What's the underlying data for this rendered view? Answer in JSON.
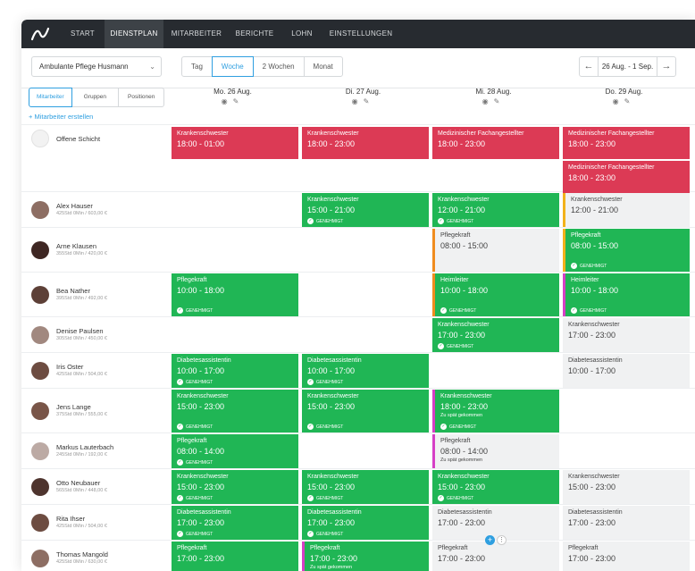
{
  "nav": {
    "items": [
      "START",
      "DIENSTPLAN",
      "MITARBEITER",
      "BERICHTE",
      "LOHN",
      "EINSTELLUNGEN"
    ],
    "active": "DIENSTPLAN"
  },
  "toolbar": {
    "location_select": "Ambulante Pflege Husmann",
    "view_options": [
      "Tag",
      "Woche",
      "2 Wochen",
      "Monat"
    ],
    "active_view": "Woche",
    "date_range": "26 Aug. - 1 Sep.",
    "prev_icon": "arrow-left-icon",
    "next_icon": "arrow-right-icon"
  },
  "sidebar": {
    "tabs": [
      "Mitarbeiter",
      "Gruppen",
      "Positionen"
    ],
    "active_tab": "Mitarbeiter",
    "add_staff": "+ Mitarbeiter erstellen"
  },
  "days": [
    {
      "label": "Mo. 26 Aug."
    },
    {
      "label": "Di. 27 Aug."
    },
    {
      "label": "Mi. 28 Aug."
    },
    {
      "label": "Do. 29 Aug."
    }
  ],
  "day_icons": [
    "eye-icon",
    "edit-icon"
  ],
  "status_label": "GENEHMIGT",
  "late_label": "Zu spät gekommen",
  "staff": [
    {
      "name": "Offene Schicht",
      "meta": ""
    },
    {
      "name": "Alex Hauser",
      "meta": "425Std 0Min / 603,00 €"
    },
    {
      "name": "Arne Klausen",
      "meta": "355Std 0Min / 420,00 €"
    },
    {
      "name": "Bea Nather",
      "meta": "395Std 0Min / 492,00 €"
    },
    {
      "name": "Denise Paulsen",
      "meta": "305Std 0Min / 450,00 €"
    },
    {
      "name": "Iris Oster",
      "meta": "425Std 0Min / 504,00 €"
    },
    {
      "name": "Jens Lange",
      "meta": "375Std 0Min / 555,00 €"
    },
    {
      "name": "Markus Lauterbach",
      "meta": "245Std 0Min / 192,00 €"
    },
    {
      "name": "Otto Neubauer",
      "meta": "565Std 0Min / 448,00 €"
    },
    {
      "name": "Rita Ihser",
      "meta": "425Std 0Min / 504,00 €"
    },
    {
      "name": "Thomas Mangold",
      "meta": "425Std 0Min / 630,00 €"
    }
  ],
  "shifts": [
    {
      "row": 0,
      "day": 0,
      "slot": 0,
      "role": "Krankenschwester",
      "time": "18:00 - 01:00",
      "color": "red"
    },
    {
      "row": 0,
      "day": 1,
      "slot": 0,
      "role": "Krankenschwester",
      "time": "18:00 - 23:00",
      "color": "red"
    },
    {
      "row": 0,
      "day": 2,
      "slot": 0,
      "role": "Medizinischer Fachangestellter",
      "time": "18:00 - 23:00",
      "color": "red"
    },
    {
      "row": 0,
      "day": 3,
      "slot": 0,
      "role": "Medizinischer Fachangestellter",
      "time": "18:00 - 23:00",
      "color": "red"
    },
    {
      "row": 0,
      "day": 3,
      "slot": 1,
      "role": "Medizinischer Fachangestellter",
      "time": "18:00 - 23:00",
      "color": "red"
    },
    {
      "row": 1,
      "day": 1,
      "slot": 0,
      "role": "Krankenschwester",
      "time": "15:00 - 21:00",
      "color": "green",
      "approved": true
    },
    {
      "row": 1,
      "day": 2,
      "slot": 0,
      "role": "Krankenschwester",
      "time": "12:00 - 21:00",
      "color": "green",
      "approved": true
    },
    {
      "row": 1,
      "day": 3,
      "slot": 0,
      "role": "Krankenschwester",
      "time": "12:00 - 21:00",
      "color": "grey",
      "accent": "yellow"
    },
    {
      "row": 2,
      "day": 2,
      "slot": 0,
      "role": "Pflegekraft",
      "time": "08:00 - 15:00",
      "color": "grey",
      "accent": "orange"
    },
    {
      "row": 2,
      "day": 3,
      "slot": 0,
      "role": "Pflegekraft",
      "time": "08:00 - 15:00",
      "color": "green",
      "accent": "yellow",
      "approved": true
    },
    {
      "row": 3,
      "day": 0,
      "slot": 0,
      "role": "Pflegekraft",
      "time": "10:00 - 18:00",
      "color": "green",
      "approved": true
    },
    {
      "row": 3,
      "day": 2,
      "slot": 0,
      "role": "Heimleiter",
      "time": "10:00 - 18:00",
      "color": "green",
      "accent": "orange",
      "approved": true
    },
    {
      "row": 3,
      "day": 3,
      "slot": 0,
      "role": "Heimleiter",
      "time": "10:00 - 18:00",
      "color": "green",
      "accent": "pink",
      "approved": true
    },
    {
      "row": 4,
      "day": 2,
      "slot": 0,
      "role": "Krankenschwester",
      "time": "17:00 - 23:00",
      "color": "green",
      "approved": true
    },
    {
      "row": 4,
      "day": 3,
      "slot": 0,
      "role": "Krankenschwester",
      "time": "17:00 - 23:00",
      "color": "grey"
    },
    {
      "row": 5,
      "day": 0,
      "slot": 0,
      "role": "Diabetesassistentin",
      "time": "10:00 - 17:00",
      "color": "green",
      "approved": true
    },
    {
      "row": 5,
      "day": 1,
      "slot": 0,
      "role": "Diabetesassistentin",
      "time": "10:00 - 17:00",
      "color": "green",
      "approved": true
    },
    {
      "row": 5,
      "day": 3,
      "slot": 0,
      "role": "Diabetesassistentin",
      "time": "10:00 - 17:00",
      "color": "grey"
    },
    {
      "row": 6,
      "day": 0,
      "slot": 0,
      "role": "Krankenschwester",
      "time": "15:00 - 23:00",
      "color": "green",
      "approved": true
    },
    {
      "row": 6,
      "day": 1,
      "slot": 0,
      "role": "Krankenschwester",
      "time": "15:00 - 23:00",
      "color": "green",
      "approved": true
    },
    {
      "row": 6,
      "day": 2,
      "slot": 0,
      "role": "Krankenschwester",
      "time": "18:00 - 23:00",
      "color": "green",
      "accent": "pink",
      "late": true,
      "approved": true
    },
    {
      "row": 7,
      "day": 0,
      "slot": 0,
      "role": "Pflegekraft",
      "time": "08:00 - 14:00",
      "color": "green",
      "approved": true
    },
    {
      "row": 7,
      "day": 2,
      "slot": 0,
      "role": "Pflegekraft",
      "time": "08:00 - 14:00",
      "color": "grey",
      "accent": "pink",
      "late": true
    },
    {
      "row": 8,
      "day": 0,
      "slot": 0,
      "role": "Krankenschwester",
      "time": "15:00 - 23:00",
      "color": "green",
      "approved": true
    },
    {
      "row": 8,
      "day": 1,
      "slot": 0,
      "role": "Krankenschwester",
      "time": "15:00 - 23:00",
      "color": "green",
      "approved": true
    },
    {
      "row": 8,
      "day": 2,
      "slot": 0,
      "role": "Krankenschwester",
      "time": "15:00 - 23:00",
      "color": "green",
      "approved": true
    },
    {
      "row": 8,
      "day": 3,
      "slot": 0,
      "role": "Krankenschwester",
      "time": "15:00 - 23:00",
      "color": "grey"
    },
    {
      "row": 9,
      "day": 0,
      "slot": 0,
      "role": "Diabetesassistentin",
      "time": "17:00 - 23:00",
      "color": "green",
      "approved": true
    },
    {
      "row": 9,
      "day": 1,
      "slot": 0,
      "role": "Diabetesassistentin",
      "time": "17:00 - 23:00",
      "color": "green",
      "approved": true
    },
    {
      "row": 9,
      "day": 2,
      "slot": 0,
      "role": "Diabetesassistentin",
      "time": "17:00 - 23:00",
      "color": "grey"
    },
    {
      "row": 9,
      "day": 3,
      "slot": 0,
      "role": "Diabetesassistentin",
      "time": "17:00 - 23:00",
      "color": "grey"
    },
    {
      "row": 10,
      "day": 0,
      "slot": 0,
      "role": "Pflegekraft",
      "time": "17:00 - 23:00",
      "color": "green"
    },
    {
      "row": 10,
      "day": 1,
      "slot": 0,
      "role": "Pflegekraft",
      "time": "17:00 - 23:00",
      "color": "green",
      "accent": "pink",
      "late": true
    },
    {
      "row": 10,
      "day": 2,
      "slot": 0,
      "role": "Pflegekraft",
      "time": "17:00 - 23:00",
      "color": "grey"
    },
    {
      "row": 10,
      "day": 3,
      "slot": 0,
      "role": "Pflegekraft",
      "time": "17:00 - 23:00",
      "color": "grey"
    }
  ],
  "colors": {
    "nav_bg": "#272b30",
    "accent": "#2f9fe0",
    "open_shift": "#dc3a55",
    "approved_shift": "#20b655",
    "pending_shift": "#f0f1f2"
  }
}
